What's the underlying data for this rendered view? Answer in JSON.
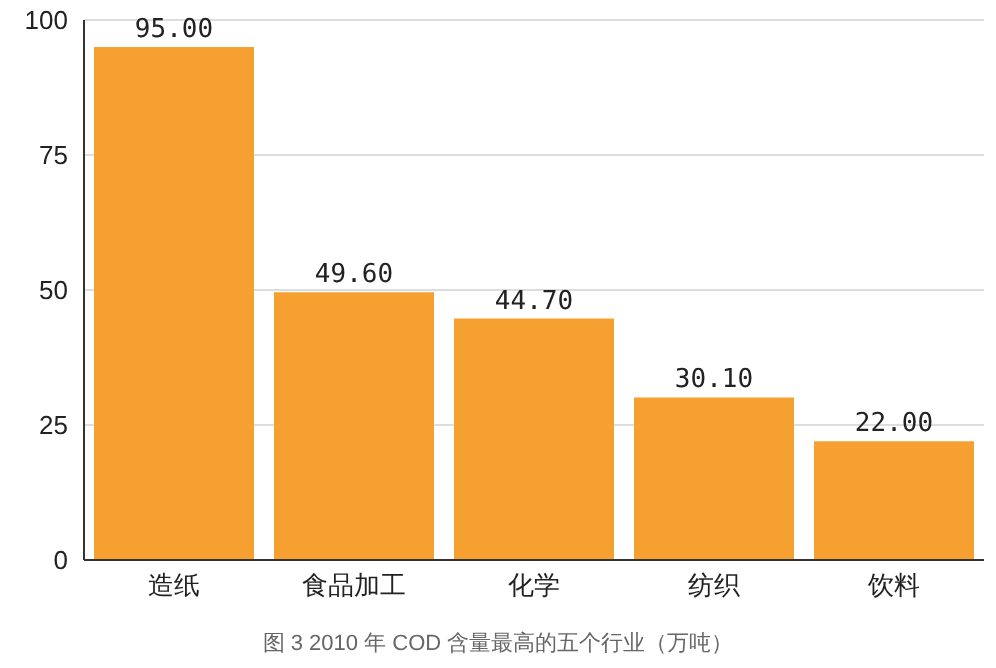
{
  "chart_data": {
    "type": "bar",
    "title": "图 3 2010 年 COD 含量最高的五个行业（万吨）",
    "categories": [
      "造纸",
      "食品加工",
      "化学",
      "纺织",
      "饮料"
    ],
    "values": [
      95,
      49.6,
      44.7,
      30.1,
      22
    ],
    "value_labels": [
      "95.00",
      "49.60",
      "44.70",
      "30.10",
      "22.00"
    ],
    "color": "#f5a030",
    "ylim": [
      0,
      100
    ],
    "yticks": [
      0,
      25,
      50,
      75,
      100
    ],
    "grid": "y"
  }
}
